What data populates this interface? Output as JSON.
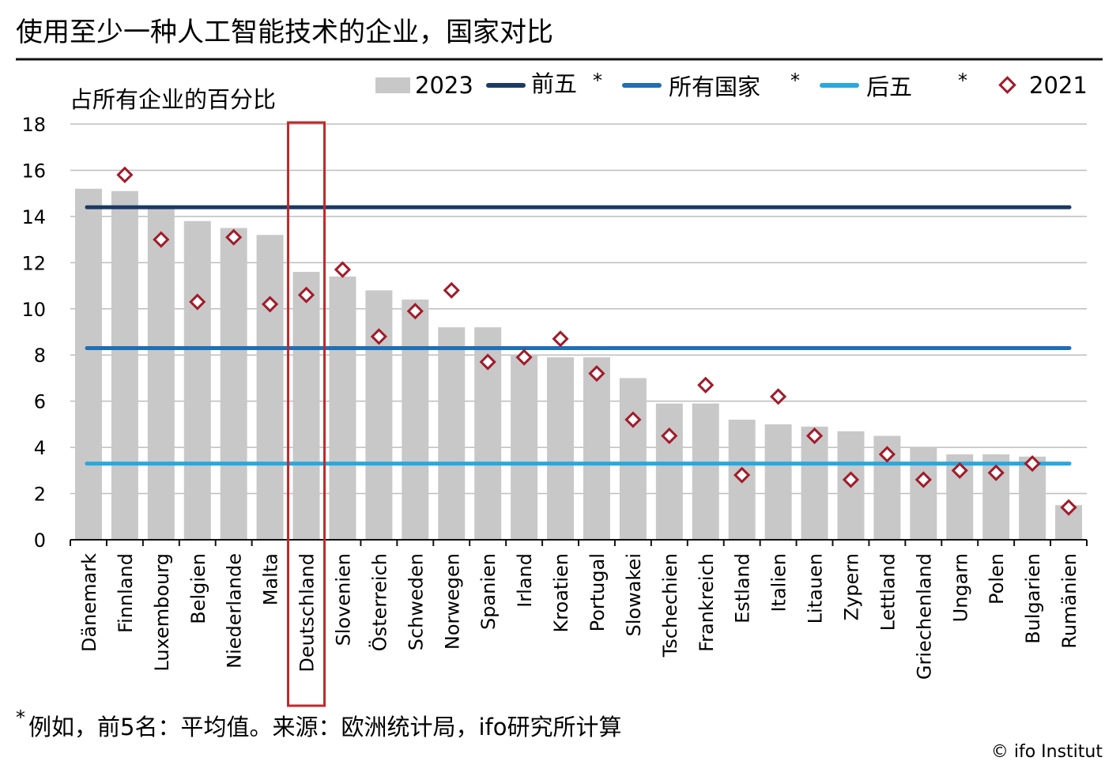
{
  "title": "使用至少一种人工智能技术的企业，国家对比",
  "footnote_mark": "*",
  "footnote": "例如，前5名：平均值。来源：欧洲统计局，ifo研究所计算",
  "source": "© ifo Institut",
  "highlight_category": "Deutschland",
  "colors": {
    "bar": "#c8c8c8",
    "top5": "#1b3a66",
    "all": "#1f6fb5",
    "bottom5": "#29a8df",
    "marker2021": "#a11b2a",
    "highlight": "#c0282d",
    "grid": "#bdbdbd",
    "rule": "#111111"
  },
  "chart_data": {
    "type": "bar",
    "ylabel": "占所有企业的百分比",
    "ylim": [
      0,
      18
    ],
    "yticks": [
      "0",
      "2",
      "4",
      "6",
      "8",
      "10",
      "12",
      "14",
      "16",
      "18"
    ],
    "grid": true,
    "legend_position": "top",
    "categories": [
      "Dänemark",
      "Finnland",
      "Luxembourg",
      "Belgien",
      "Niederlande",
      "Malta",
      "Deutschland",
      "Slovenien",
      "Österreich",
      "Schweden",
      "Norwegen",
      "Spanien",
      "Irland",
      "Kroatien",
      "Portugal",
      "Slowakei",
      "Tschechien",
      "Frankreich",
      "Estland",
      "Italien",
      "Litauen",
      "Zypern",
      "Lettland",
      "Griechenland",
      "Ungarn",
      "Polen",
      "Bulgarien",
      "Rumänien"
    ],
    "series": [
      {
        "name": "2023",
        "kind": "bar",
        "values": [
          15.2,
          15.1,
          14.4,
          13.8,
          13.5,
          13.2,
          11.6,
          11.4,
          10.8,
          10.4,
          9.2,
          9.2,
          8.0,
          7.9,
          7.9,
          7.0,
          5.9,
          5.9,
          5.2,
          5.0,
          4.9,
          4.7,
          4.5,
          4.0,
          3.7,
          3.7,
          3.6,
          1.5
        ]
      },
      {
        "name": "2021",
        "kind": "marker",
        "values": [
          null,
          15.8,
          13.0,
          10.3,
          13.1,
          10.2,
          10.6,
          11.7,
          8.8,
          9.9,
          10.8,
          7.7,
          7.9,
          8.7,
          7.2,
          5.2,
          4.5,
          6.7,
          2.8,
          6.2,
          4.5,
          2.6,
          3.7,
          2.6,
          3.0,
          2.9,
          3.3,
          1.4
        ]
      },
      {
        "name": "前五",
        "kind": "line",
        "value": 14.4,
        "mark": "*"
      },
      {
        "name": "所有国家",
        "kind": "line",
        "value": 8.3,
        "mark": "*"
      },
      {
        "name": "后五",
        "kind": "line",
        "value": 3.3,
        "mark": "*"
      }
    ]
  }
}
